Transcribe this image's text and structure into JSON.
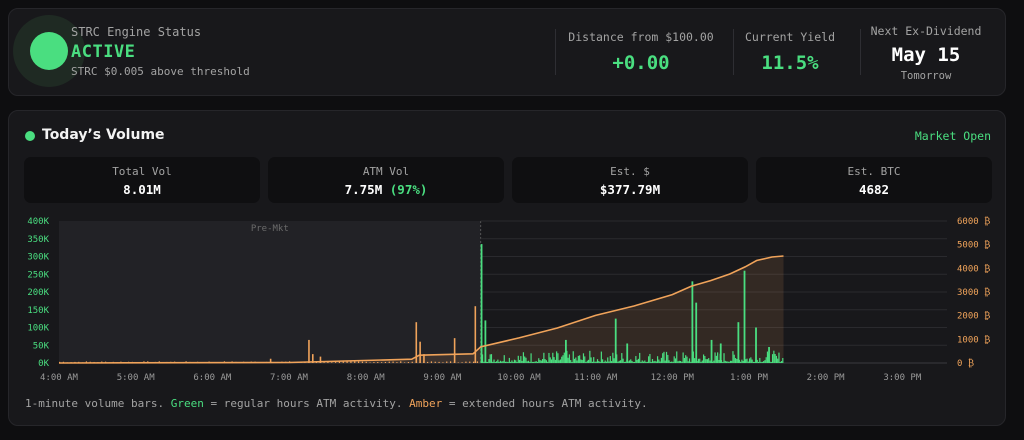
{
  "status": {
    "label": "STRC Engine Status",
    "value": "ACTIVE",
    "subtext": "STRC $0.005 above threshold"
  },
  "metrics": [
    {
      "label": "Distance from $100.00",
      "value": "+0.00"
    },
    {
      "label": "Current Yield",
      "value": "11.5%"
    },
    {
      "label": "Next Ex-Dividend",
      "value": "May 15",
      "sub": "Tomorrow"
    }
  ],
  "volume": {
    "title": "Today’s Volume",
    "market_status": "Market Open",
    "stats": [
      {
        "label": "Total Vol",
        "value": "8.01M"
      },
      {
        "label": "ATM Vol",
        "value": "7.75M",
        "pct": "(97%)"
      },
      {
        "label": "Est. $",
        "value": "$377.79M"
      },
      {
        "label": "Est. BTC",
        "value": "4682"
      }
    ],
    "caption": {
      "p1": "1-minute volume bars. ",
      "green": "Green",
      "p2": " = regular hours ATM activity. ",
      "amber": "Amber",
      "p3": " = extended hours ATM activity."
    }
  },
  "colors": {
    "regular": "#4ade80",
    "extended": "#f0a35a",
    "background": "#18181b"
  },
  "chart_data": {
    "type": "bar",
    "premarket_label": "Pre-Mkt",
    "x_ticks": [
      "4:00 AM",
      "5:00 AM",
      "6:00 AM",
      "7:00 AM",
      "8:00 AM",
      "9:00 AM",
      "10:00 AM",
      "11:00 AM",
      "12:00 PM",
      "1:00 PM",
      "2:00 PM",
      "3:00 PM"
    ],
    "y_left_ticks": [
      "0K",
      "50K",
      "100K",
      "150K",
      "200K",
      "250K",
      "300K",
      "350K",
      "400K"
    ],
    "y_right_ticks": [
      "0 ₿",
      "1000 ₿",
      "2000 ₿",
      "3000 ₿",
      "4000 ₿",
      "5000 ₿",
      "6000 ₿"
    ],
    "x_range_hours": [
      4.0,
      15.583
    ],
    "y_left_range": [
      0,
      400000
    ],
    "y_right_range": [
      0,
      6000
    ],
    "premarket_end_hour": 9.5,
    "extended_spikes": [
      {
        "t": 7.25,
        "v": 65000
      },
      {
        "t": 7.3,
        "v": 25000
      },
      {
        "t": 7.4,
        "v": 18000
      },
      {
        "t": 6.75,
        "v": 12000
      },
      {
        "t": 8.65,
        "v": 115000
      },
      {
        "t": 8.7,
        "v": 60000
      },
      {
        "t": 8.75,
        "v": 25000
      },
      {
        "t": 9.15,
        "v": 70000
      },
      {
        "t": 9.42,
        "v": 160000
      }
    ],
    "regular_spikes": [
      {
        "t": 9.5,
        "v": 335000
      },
      {
        "t": 9.55,
        "v": 120000
      },
      {
        "t": 10.6,
        "v": 65000
      },
      {
        "t": 11.25,
        "v": 125000
      },
      {
        "t": 11.4,
        "v": 55000
      },
      {
        "t": 12.25,
        "v": 230000
      },
      {
        "t": 12.3,
        "v": 170000
      },
      {
        "t": 12.5,
        "v": 65000
      },
      {
        "t": 12.62,
        "v": 55000
      },
      {
        "t": 12.85,
        "v": 115000
      },
      {
        "t": 12.93,
        "v": 260000
      },
      {
        "t": 13.08,
        "v": 100000
      },
      {
        "t": 13.25,
        "v": 45000
      }
    ],
    "btc_cumulative": [
      {
        "t": 4.0,
        "v": 0
      },
      {
        "t": 7.0,
        "v": 20
      },
      {
        "t": 8.6,
        "v": 160
      },
      {
        "t": 8.7,
        "v": 330
      },
      {
        "t": 9.4,
        "v": 390
      },
      {
        "t": 9.5,
        "v": 680
      },
      {
        "t": 10.0,
        "v": 1060
      },
      {
        "t": 10.5,
        "v": 1480
      },
      {
        "t": 11.0,
        "v": 2010
      },
      {
        "t": 11.5,
        "v": 2410
      },
      {
        "t": 12.0,
        "v": 2890
      },
      {
        "t": 12.25,
        "v": 3250
      },
      {
        "t": 12.5,
        "v": 3480
      },
      {
        "t": 12.75,
        "v": 3760
      },
      {
        "t": 12.95,
        "v": 4060
      },
      {
        "t": 13.1,
        "v": 4330
      },
      {
        "t": 13.3,
        "v": 4480
      },
      {
        "t": 13.45,
        "v": 4520
      }
    ]
  }
}
